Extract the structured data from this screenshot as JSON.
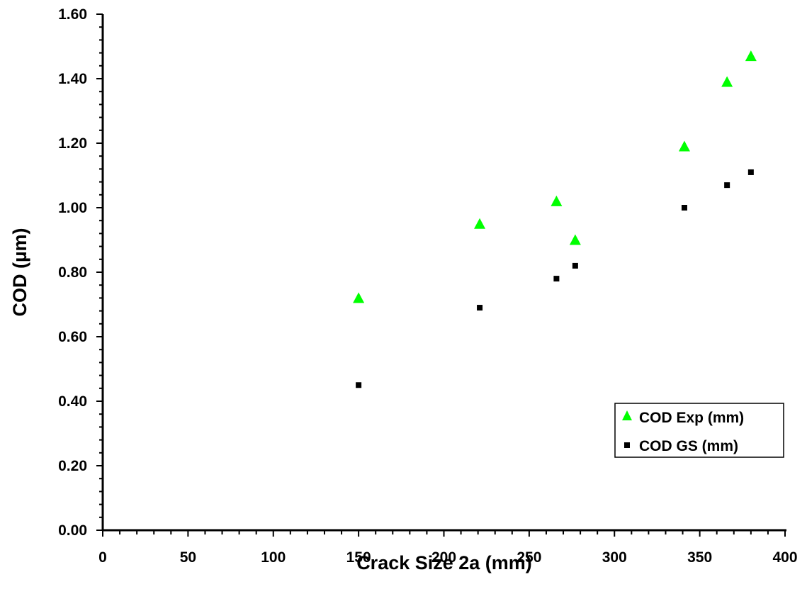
{
  "chart_data": {
    "type": "scatter",
    "title": "",
    "xlabel": "Crack Size 2a (mm)",
    "ylabel": "COD (µm)",
    "xlim": [
      0,
      400
    ],
    "ylim": [
      0,
      1.6
    ],
    "x_ticks": [
      "0",
      "50",
      "100",
      "150",
      "200",
      "250",
      "300",
      "350",
      "400"
    ],
    "y_ticks": [
      "0.00",
      "0.20",
      "0.40",
      "0.60",
      "0.80",
      "1.00",
      "1.20",
      "1.40",
      "1.60"
    ],
    "grid": false,
    "legend_position": "right",
    "series": [
      {
        "name": "COD Exp (mm)",
        "marker": "triangle",
        "color": "#00ff00",
        "points": [
          {
            "x": 150,
            "y": 0.72
          },
          {
            "x": 221,
            "y": 0.95
          },
          {
            "x": 266,
            "y": 1.02
          },
          {
            "x": 277,
            "y": 0.9
          },
          {
            "x": 341,
            "y": 1.19
          },
          {
            "x": 366,
            "y": 1.39
          },
          {
            "x": 380,
            "y": 1.47
          }
        ]
      },
      {
        "name": "COD GS (mm)",
        "marker": "square",
        "color": "#000000",
        "points": [
          {
            "x": 150,
            "y": 0.45
          },
          {
            "x": 221,
            "y": 0.69
          },
          {
            "x": 266,
            "y": 0.78
          },
          {
            "x": 277,
            "y": 0.82
          },
          {
            "x": 341,
            "y": 1.0
          },
          {
            "x": 366,
            "y": 1.07
          },
          {
            "x": 380,
            "y": 1.11
          }
        ]
      }
    ]
  }
}
